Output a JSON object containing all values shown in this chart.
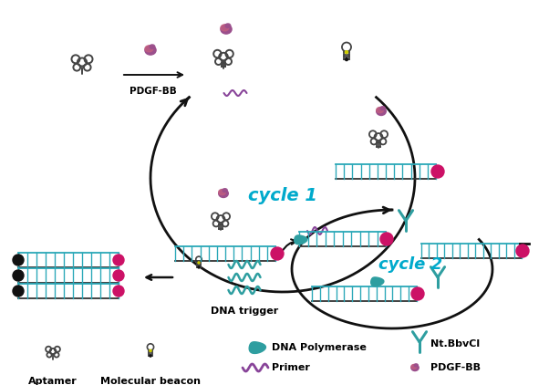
{
  "background_color": "#ffffff",
  "cycle1_label": "cycle 1",
  "cycle2_label": "cycle 2",
  "pdgf_label": "PDGF-BB",
  "dna_trigger_label": "DNA trigger",
  "aptamer_label": "Aptamer",
  "molecular_beacon_label": "Molecular beacon",
  "dna_poly_label": "DNA Polymerase",
  "ntbbvcl_label": "Nt.BbvCl",
  "primer_label": "Primer",
  "pdgf_legend_label": "PDGF-BB",
  "teal_color": "#2E9EA0",
  "magenta_color": "#CC1166",
  "pdgf_color1": "#9B4F8C",
  "pdgf_color2": "#C46080",
  "dark_color": "#111111",
  "cycle_color": "#00AACC",
  "dna_blue": "#2AA8B8",
  "yellow_dot": "#CCCC00",
  "primer_color": "#884499",
  "figure_width": 6.02,
  "figure_height": 4.22,
  "dpi": 100
}
